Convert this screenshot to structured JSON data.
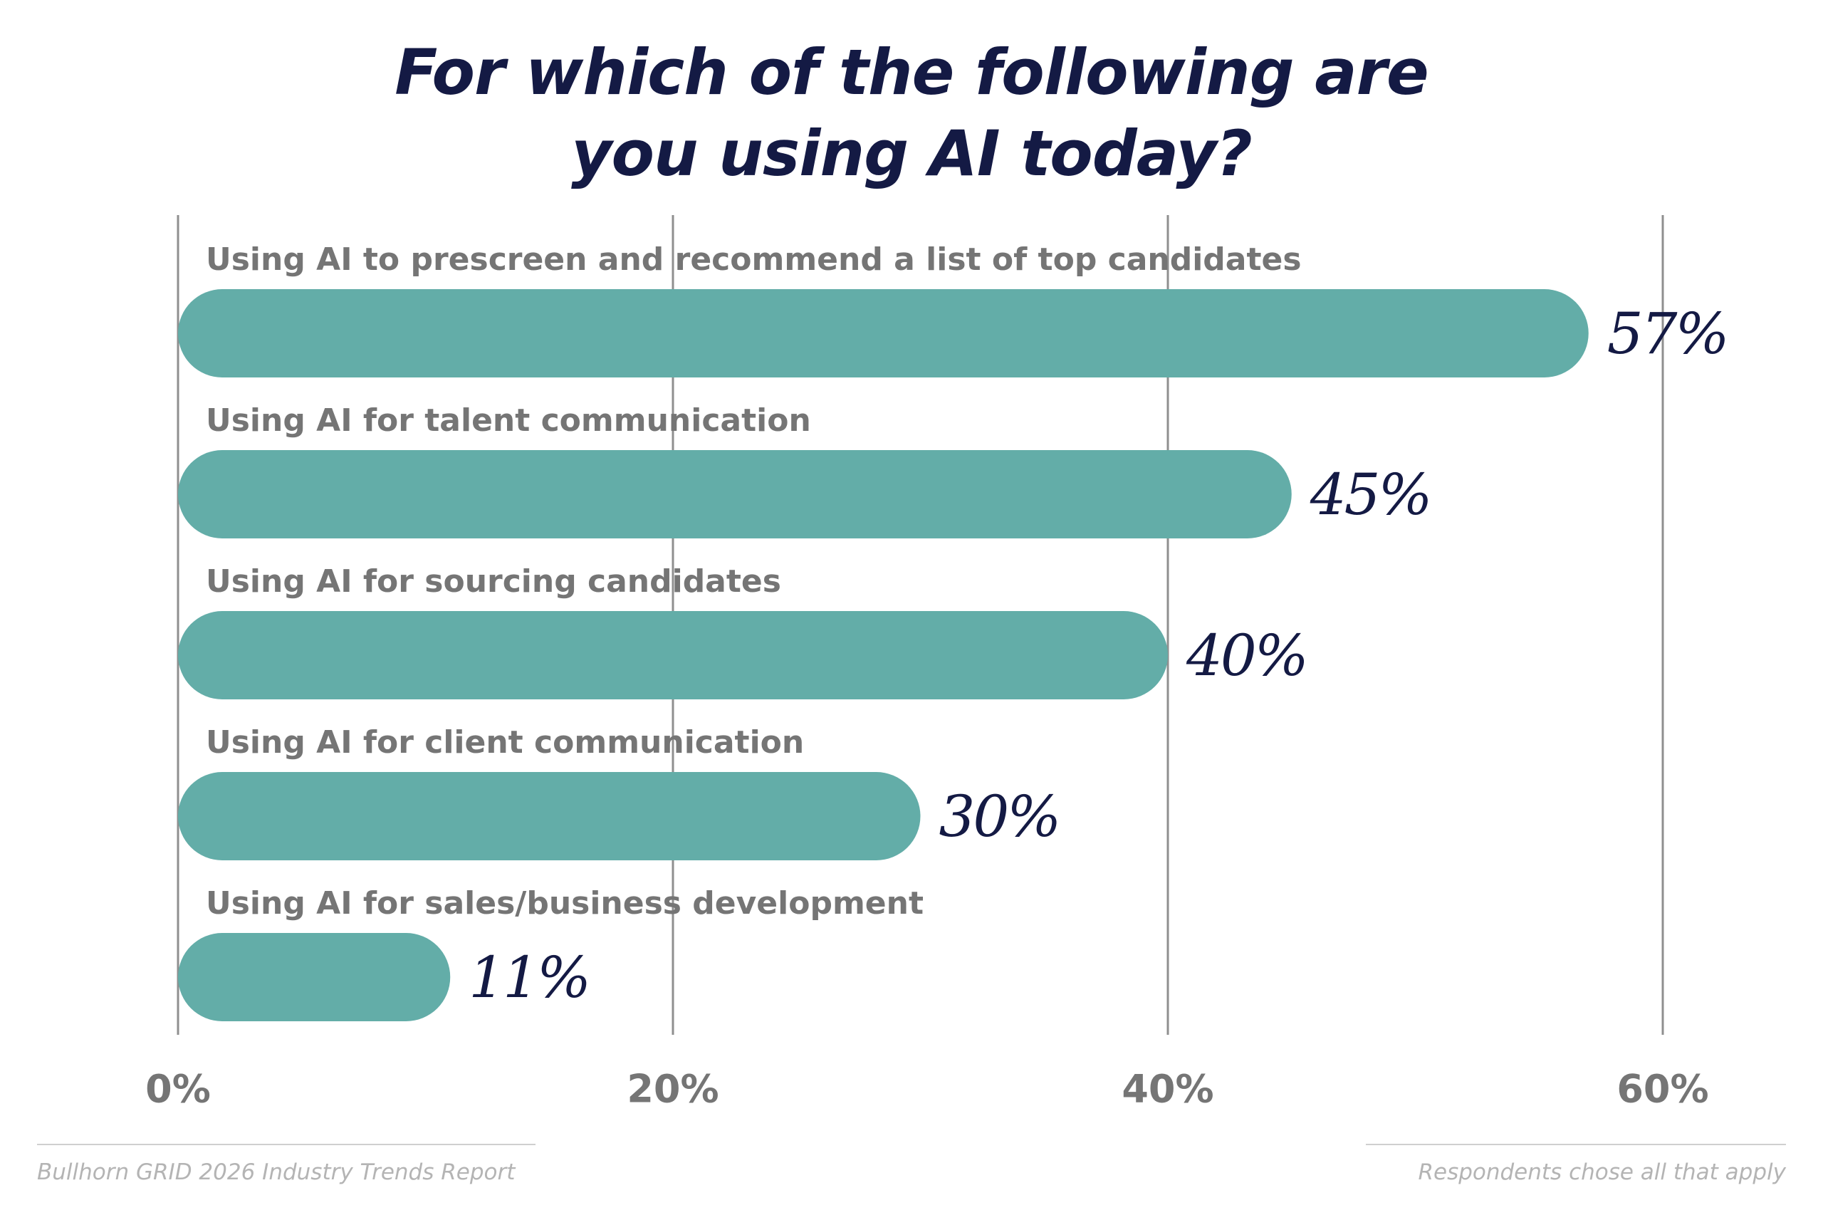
{
  "chart_data": {
    "type": "bar",
    "orientation": "horizontal",
    "title_lines": [
      "For which of the following are",
      "you using AI today?"
    ],
    "categories": [
      "Using AI to prescreen and recommend a list of top candidates",
      "Using AI for talent communication",
      "Using AI for sourcing candidates",
      "Using AI for client communication",
      "Using AI for sales/business development"
    ],
    "values": [
      57,
      45,
      40,
      30,
      11
    ],
    "value_labels": [
      "57%",
      "45%",
      "40%",
      "30%",
      "11%"
    ],
    "xlim": [
      0,
      60
    ],
    "xticks": [
      0,
      20,
      40,
      60
    ],
    "xtick_labels": [
      "0%",
      "20%",
      "40%",
      "60%"
    ],
    "grid": true,
    "colors": {
      "bar": "#63ada8",
      "grid": "#8f8f8f",
      "category_label": "#757575",
      "value_label": "#141a44",
      "tick_label": "#757575"
    }
  },
  "footer": {
    "source": "Bullhorn GRID 2026 Industry Trends Report",
    "note": "Respondents chose all that apply"
  }
}
